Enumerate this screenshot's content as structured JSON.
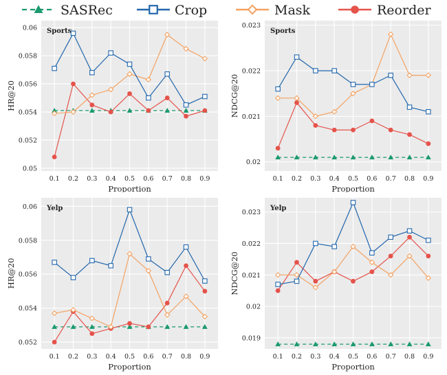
{
  "legend": [
    {
      "name": "SASRec",
      "color": "#1a9a6e",
      "marker": "triangle",
      "dash": true
    },
    {
      "name": "Crop",
      "color": "#2166ac",
      "marker": "square"
    },
    {
      "name": "Mask",
      "color": "#f4a261",
      "marker": "diamond"
    },
    {
      "name": "Reorder",
      "color": "#e5534b",
      "marker": "circle"
    }
  ],
  "chart_data": [
    {
      "type": "line",
      "title": "Sports",
      "xlabel": "Proportion",
      "ylabel": "HR@20",
      "x": [
        0.1,
        0.2,
        0.3,
        0.4,
        0.5,
        0.6,
        0.7,
        0.8,
        0.9
      ],
      "ylim": [
        0.0498,
        0.0605
      ],
      "yticks": [
        0.05,
        0.052,
        0.054,
        0.056,
        0.058,
        0.06
      ],
      "ytick_labels": [
        "0.05",
        "0.052",
        "0.054",
        "0.056",
        "0.058",
        "0.06"
      ],
      "grid": true,
      "series": [
        {
          "name": "SASRec",
          "values": [
            0.0541,
            0.0541,
            0.0541,
            0.0541,
            0.0541,
            0.0541,
            0.0541,
            0.0541,
            0.0541
          ]
        },
        {
          "name": "Crop",
          "values": [
            0.0571,
            0.0596,
            0.0568,
            0.0582,
            0.0574,
            0.055,
            0.0567,
            0.0545,
            0.0551
          ]
        },
        {
          "name": "Mask",
          "values": [
            0.0539,
            0.054,
            0.0552,
            0.0556,
            0.0567,
            0.0563,
            0.0595,
            0.0585,
            0.0578
          ]
        },
        {
          "name": "Reorder",
          "values": [
            0.0508,
            0.056,
            0.0545,
            0.054,
            0.0553,
            0.0541,
            0.055,
            0.0537,
            0.0541
          ]
        }
      ]
    },
    {
      "type": "line",
      "title": "Sports",
      "xlabel": "Proportion",
      "ylabel": "NDCG@20",
      "x": [
        0.1,
        0.2,
        0.3,
        0.4,
        0.5,
        0.6,
        0.7,
        0.8,
        0.9
      ],
      "ylim": [
        0.0198,
        0.0231
      ],
      "yticks": [
        0.02,
        0.021,
        0.022,
        0.023
      ],
      "ytick_labels": [
        "0.02",
        "0.021",
        "0.022",
        "0.023"
      ],
      "grid": true,
      "series": [
        {
          "name": "SASRec",
          "values": [
            0.0201,
            0.0201,
            0.0201,
            0.0201,
            0.0201,
            0.0201,
            0.0201,
            0.0201,
            0.0201
          ]
        },
        {
          "name": "Crop",
          "values": [
            0.0216,
            0.0223,
            0.022,
            0.022,
            0.0217,
            0.0217,
            0.0219,
            0.0212,
            0.0211
          ]
        },
        {
          "name": "Mask",
          "values": [
            0.0214,
            0.0214,
            0.021,
            0.0211,
            0.0215,
            0.0217,
            0.0228,
            0.0219,
            0.0219
          ]
        },
        {
          "name": "Reorder",
          "values": [
            0.0203,
            0.0213,
            0.0208,
            0.0207,
            0.0207,
            0.0209,
            0.0207,
            0.0206,
            0.0204
          ]
        }
      ]
    },
    {
      "type": "line",
      "title": "Yelp",
      "xlabel": "Proportion",
      "ylabel": "HR@20",
      "x": [
        0.1,
        0.2,
        0.3,
        0.4,
        0.5,
        0.6,
        0.7,
        0.8,
        0.9
      ],
      "ylim": [
        0.0516,
        0.0605
      ],
      "yticks": [
        0.052,
        0.054,
        0.056,
        0.058,
        0.06
      ],
      "ytick_labels": [
        "0.052",
        "0.054",
        "0.056",
        "0.058",
        "0.06"
      ],
      "grid": true,
      "series": [
        {
          "name": "SASRec",
          "values": [
            0.0529,
            0.0529,
            0.0529,
            0.0529,
            0.0529,
            0.0529,
            0.0529,
            0.0529,
            0.0529
          ]
        },
        {
          "name": "Crop",
          "values": [
            0.0567,
            0.0558,
            0.0568,
            0.0565,
            0.0598,
            0.0569,
            0.0561,
            0.0576,
            0.0556
          ]
        },
        {
          "name": "Mask",
          "values": [
            0.0537,
            0.0539,
            0.0534,
            0.0529,
            0.0572,
            0.0562,
            0.0536,
            0.0547,
            0.0535
          ]
        },
        {
          "name": "Reorder",
          "values": [
            0.052,
            0.0538,
            0.0525,
            0.0528,
            0.0531,
            0.0529,
            0.0543,
            0.0565,
            0.055
          ]
        }
      ]
    },
    {
      "type": "line",
      "title": "Yelp",
      "xlabel": "Proportion",
      "ylabel": "NDCG@20",
      "x": [
        0.1,
        0.2,
        0.3,
        0.4,
        0.5,
        0.6,
        0.7,
        0.8,
        0.9
      ],
      "ylim": [
        0.01865,
        0.02345
      ],
      "yticks": [
        0.019,
        0.02,
        0.021,
        0.022,
        0.023
      ],
      "ytick_labels": [
        "0.019",
        "0.02",
        "0.021",
        "0.022",
        "0.023"
      ],
      "grid": true,
      "series": [
        {
          "name": "SASRec",
          "values": [
            0.0188,
            0.0188,
            0.0188,
            0.0188,
            0.0188,
            0.0188,
            0.0188,
            0.0188,
            0.0188
          ]
        },
        {
          "name": "Crop",
          "values": [
            0.0207,
            0.0208,
            0.022,
            0.0219,
            0.0233,
            0.0217,
            0.0222,
            0.0224,
            0.0221
          ]
        },
        {
          "name": "Mask",
          "values": [
            0.021,
            0.021,
            0.0206,
            0.0211,
            0.0219,
            0.0214,
            0.021,
            0.0216,
            0.0209
          ]
        },
        {
          "name": "Reorder",
          "values": [
            0.0205,
            0.0214,
            0.0208,
            0.0211,
            0.0208,
            0.0211,
            0.0216,
            0.0222,
            0.0216
          ]
        }
      ]
    }
  ]
}
